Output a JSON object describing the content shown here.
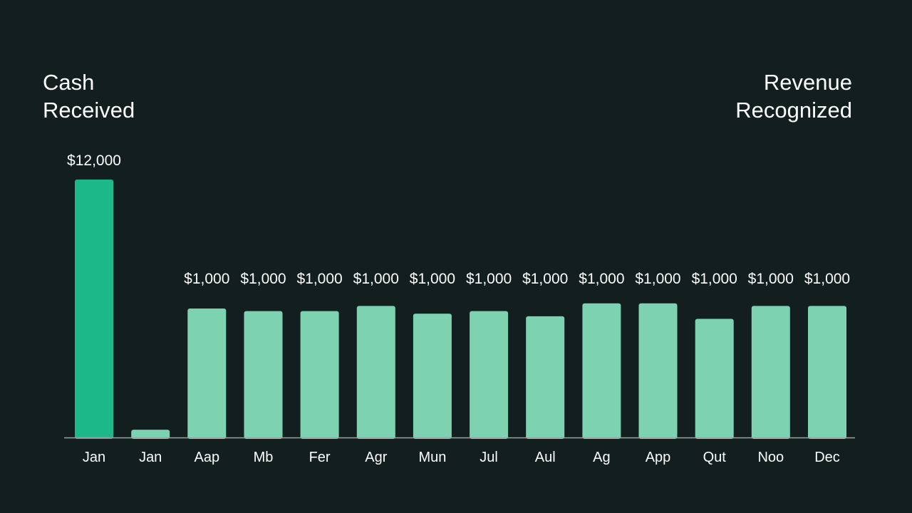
{
  "headings": {
    "left": "Cash\nReceived",
    "right": "Revenue\nRecognized"
  },
  "colors": {
    "background": "#131f1f",
    "cash_bar": "#1db887",
    "revenue_bar": "#7dd3b1",
    "axis": "#9aa3a3",
    "text": "#ffffff"
  },
  "chart_data": {
    "type": "bar",
    "title": "",
    "xlabel": "",
    "ylabel": "",
    "categories": [
      "Jan",
      "Jan",
      "Aap",
      "Mb",
      "Fer",
      "Agr",
      "Mun",
      "Jul",
      "Aul",
      "Ag",
      "App",
      "Qut",
      "Noo",
      "Dec"
    ],
    "values": [
      12000,
      300,
      1000,
      1000,
      1000,
      1000,
      1000,
      1000,
      1000,
      1000,
      1000,
      1000,
      1000,
      1000
    ],
    "bar_heights_relative": [
      1.0,
      0.03,
      0.5,
      0.49,
      0.49,
      0.51,
      0.48,
      0.49,
      0.47,
      0.52,
      0.52,
      0.46,
      0.51,
      0.51
    ],
    "labels": [
      "$12,000",
      "",
      "$1,000",
      "$1,000",
      "$1,000",
      "$1,000",
      "$1,000",
      "$1,000",
      "$1,000",
      "$1,000",
      "$1,000",
      "$1,000",
      "$1,000",
      "$1,000"
    ],
    "series_roles": [
      "cash",
      "revenue",
      "revenue",
      "revenue",
      "revenue",
      "revenue",
      "revenue",
      "revenue",
      "revenue",
      "revenue",
      "revenue",
      "revenue",
      "revenue",
      "revenue"
    ],
    "grid": false,
    "legend": "none"
  }
}
